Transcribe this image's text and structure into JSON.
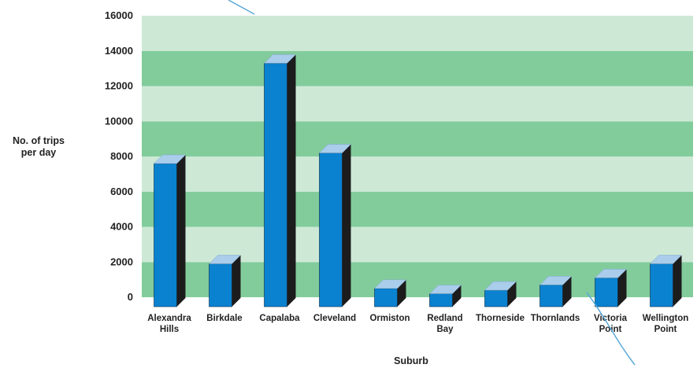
{
  "chart_data": {
    "type": "bar",
    "title": "",
    "xlabel": "Suburb",
    "ylabel_lines": [
      "No. of trips",
      "per day"
    ],
    "ylim": [
      0,
      16000
    ],
    "ticks": [
      0,
      2000,
      4000,
      6000,
      8000,
      10000,
      12000,
      14000,
      16000
    ],
    "grid": "alternating horizontal bands",
    "categories": [
      [
        "Alexandra",
        "Hills"
      ],
      [
        "Birkdale"
      ],
      [
        "Capalaba"
      ],
      [
        "Cleveland"
      ],
      [
        "Ormiston"
      ],
      [
        "Redland",
        "Bay"
      ],
      [
        "Thorneside"
      ],
      [
        "Thornlands"
      ],
      [
        "Victoria",
        "Point"
      ],
      [
        "Wellington",
        "Point"
      ]
    ],
    "values": [
      7600,
      1900,
      13300,
      8200,
      500,
      200,
      400,
      700,
      1100,
      1900
    ],
    "colors": {
      "bar_front": "#0a82d0",
      "bar_side": "#1c1c1c",
      "bar_top": "#a9cdeb",
      "band_light": "#cde9d6",
      "band_dark": "#82cc9c",
      "stray_line": "#5aa9d8"
    }
  }
}
